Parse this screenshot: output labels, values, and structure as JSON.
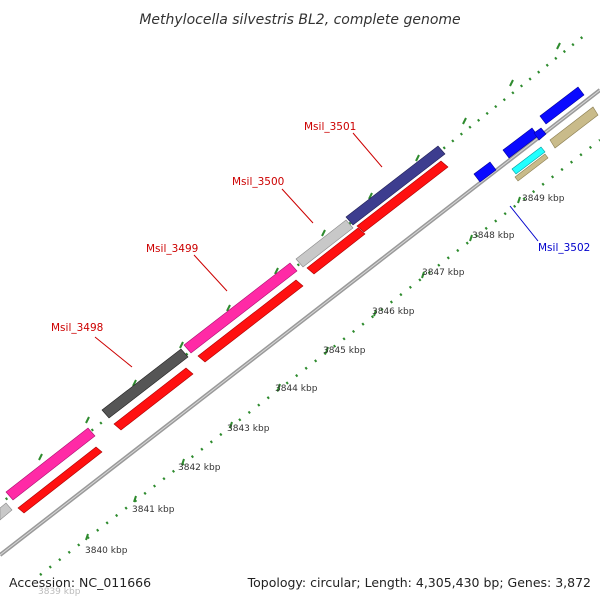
{
  "title": "Methylocella silvestris BL2, complete genome",
  "accession": "Accession: NC_011666",
  "summary": "Topology: circular; Length: 4,305,430 bp; Genes: 3,872",
  "colors": {
    "backbone": "#9a9a9a",
    "ticks": "#2e8b2e",
    "label_red": "#cc0000",
    "label_blue": "#0000cc"
  },
  "ticks": [
    "3839 kbp",
    "3840 kbp",
    "3841 kbp",
    "3842 kbp",
    "3843 kbp",
    "3844 kbp",
    "3845 kbp",
    "3846 kbp",
    "3847 kbp",
    "3848 kbp",
    "3849 kbp"
  ],
  "gene_labels": [
    "Msil_3498",
    "Msil_3499",
    "Msil_3500",
    "Msil_3501",
    "Msil_3502"
  ]
}
